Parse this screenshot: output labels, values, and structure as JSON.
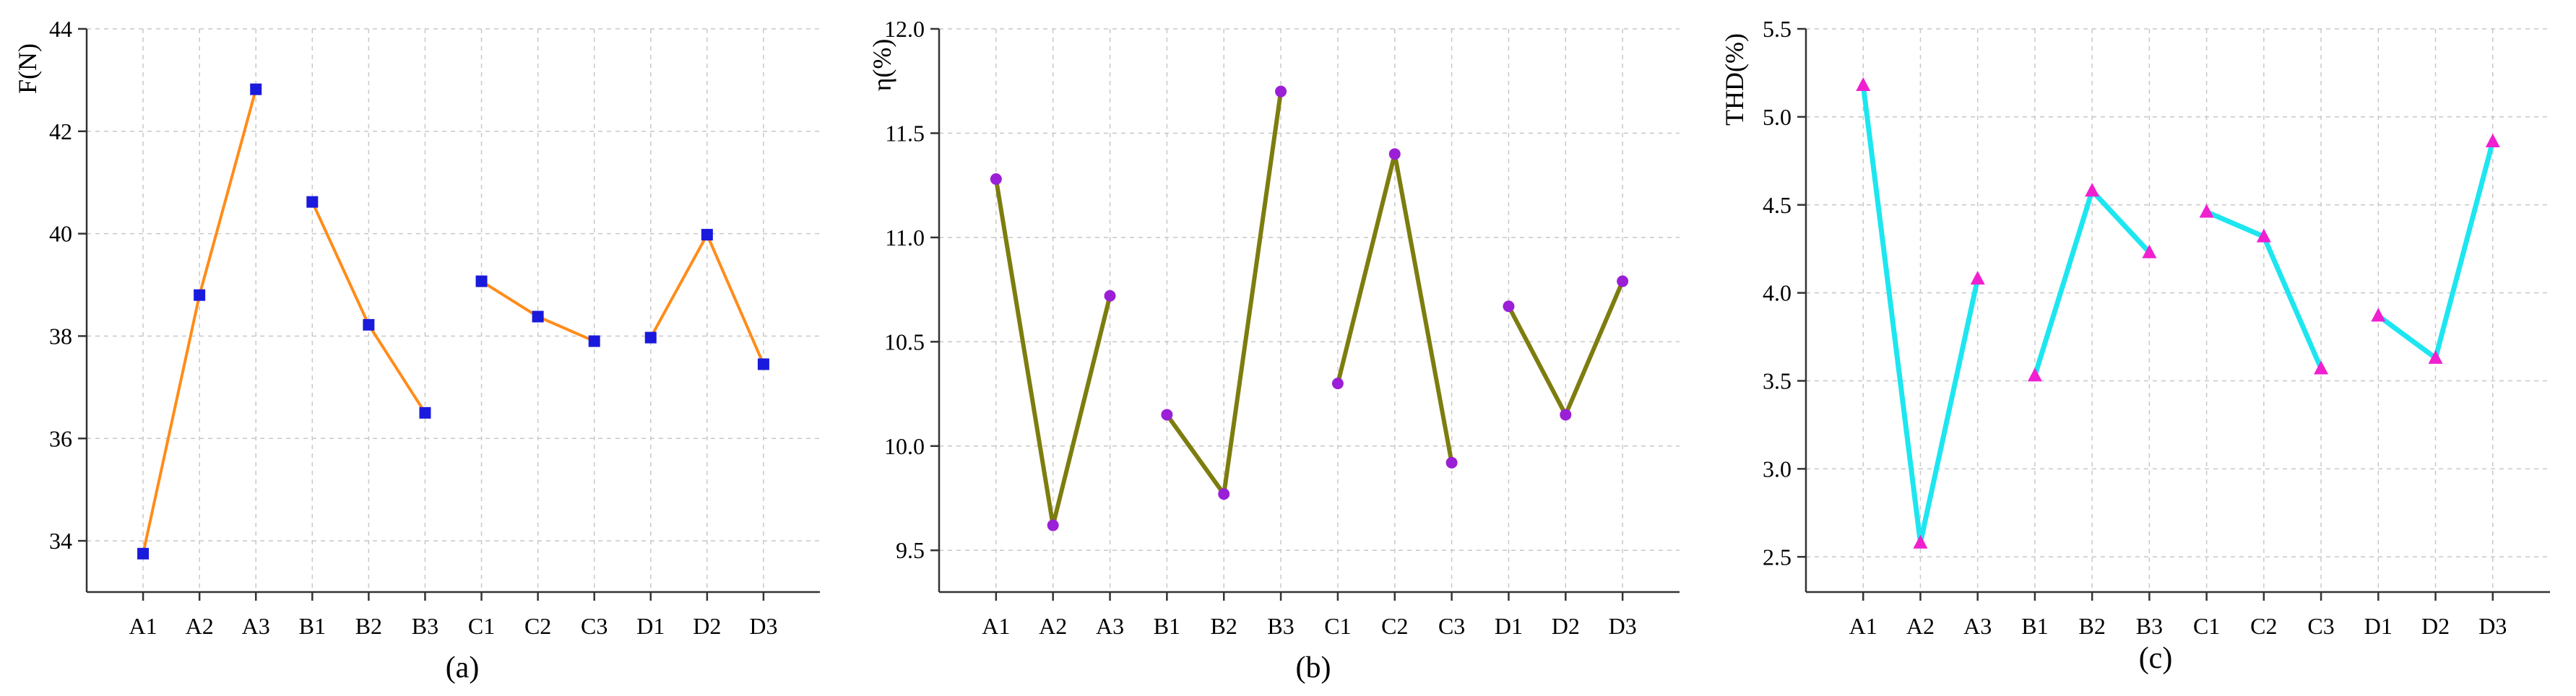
{
  "chart_data": [
    {
      "type": "line",
      "caption": "(a)",
      "ylabel": "F(N)",
      "xlabel": "",
      "categories": [
        "A1",
        "A2",
        "A3",
        "B1",
        "B2",
        "B3",
        "C1",
        "C2",
        "C3",
        "D1",
        "D2",
        "D3"
      ],
      "groups": [
        [
          0,
          1,
          2
        ],
        [
          3,
          4,
          5
        ],
        [
          6,
          7,
          8
        ],
        [
          9,
          10,
          11
        ]
      ],
      "values": [
        33.75,
        38.8,
        42.82,
        40.62,
        38.22,
        36.5,
        39.07,
        38.38,
        37.9,
        37.97,
        39.98,
        37.45
      ],
      "ylim": [
        33,
        44
      ],
      "yticks": [
        34,
        36,
        38,
        40,
        42,
        44
      ],
      "ytick_labels": [
        "34",
        "36",
        "38",
        "40",
        "42",
        "44"
      ],
      "line_color": "#ff8c1a",
      "marker_color": "#1a1adc",
      "marker": "square",
      "grid": true
    },
    {
      "type": "line",
      "caption": "(b)",
      "ylabel": "η(%)",
      "xlabel": "",
      "categories": [
        "A1",
        "A2",
        "A3",
        "B1",
        "B2",
        "B3",
        "C1",
        "C2",
        "C3",
        "D1",
        "D2",
        "D3"
      ],
      "groups": [
        [
          0,
          1,
          2
        ],
        [
          3,
          4,
          5
        ],
        [
          6,
          7,
          8
        ],
        [
          9,
          10,
          11
        ]
      ],
      "values": [
        11.28,
        9.62,
        10.72,
        10.15,
        9.77,
        11.7,
        10.3,
        11.4,
        9.92,
        10.67,
        10.15,
        10.79
      ],
      "ylim": [
        9.3,
        12.0
      ],
      "yticks": [
        9.5,
        10.0,
        10.5,
        11.0,
        11.5,
        12.0
      ],
      "ytick_labels": [
        "9.5",
        "10.0",
        "10.5",
        "11.0",
        "11.5",
        "12.0"
      ],
      "line_color": "#7d7d0f",
      "marker_color": "#9b1fd6",
      "marker": "circle",
      "grid": true
    },
    {
      "type": "line",
      "caption": "(c)",
      "ylabel": "THD(%)",
      "xlabel": "",
      "categories": [
        "A1",
        "A2",
        "A3",
        "B1",
        "B2",
        "B3",
        "C1",
        "C2",
        "C3",
        "D1",
        "D2",
        "D3"
      ],
      "groups": [
        [
          0,
          1,
          2
        ],
        [
          3,
          4,
          5
        ],
        [
          6,
          7,
          8
        ],
        [
          9,
          10,
          11
        ]
      ],
      "values": [
        5.18,
        2.58,
        4.08,
        3.53,
        4.58,
        4.23,
        4.46,
        4.32,
        3.57,
        3.87,
        3.63,
        4.86
      ],
      "ylim": [
        2.3,
        5.5
      ],
      "yticks": [
        2.5,
        3.0,
        3.5,
        4.0,
        4.5,
        5.0,
        5.5
      ],
      "ytick_labels": [
        "2.5",
        "3.0",
        "3.5",
        "4.0",
        "4.5",
        "5.0",
        "5.5"
      ],
      "line_color": "#1ee6f0",
      "marker_color": "#f01fd0",
      "marker": "triangle",
      "grid": true
    }
  ]
}
